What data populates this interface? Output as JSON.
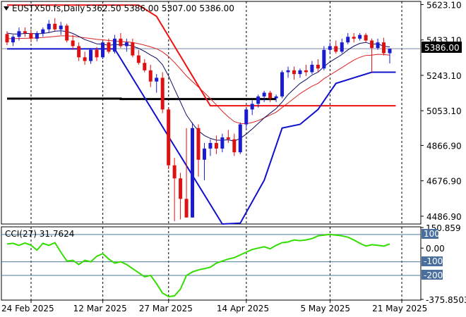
{
  "chart_data": [
    {
      "type": "candlestick",
      "header": {
        "symbol_label": "EUSTX50.fs,Daily",
        "ohlc_text": "5362.50 5386.00 5307.00 5386.00"
      },
      "last_price_label": "5386.00",
      "y_ticks": [
        "5623.10",
        "5433.10",
        "5243.10",
        "5053.10",
        "4866.90",
        "4676.90",
        "4486.90"
      ],
      "x_labels": [
        "24 Feb 2025",
        "12 Mar 2025",
        "27 Mar 2025",
        "14 Apr 2025",
        "5 May 2025",
        "21 May 2025"
      ],
      "ylim": [
        4445,
        5640
      ],
      "bar_count": 65,
      "x_label_bar_index": [
        0,
        12,
        23,
        36,
        50,
        62
      ],
      "candles": [
        {
          "o": 5465,
          "h": 5480,
          "l": 5405,
          "c": 5420
        },
        {
          "o": 5420,
          "h": 5460,
          "l": 5400,
          "c": 5450
        },
        {
          "o": 5450,
          "h": 5500,
          "l": 5430,
          "c": 5480
        },
        {
          "o": 5480,
          "h": 5500,
          "l": 5450,
          "c": 5470
        },
        {
          "o": 5470,
          "h": 5490,
          "l": 5420,
          "c": 5440
        },
        {
          "o": 5440,
          "h": 5480,
          "l": 5425,
          "c": 5470
        },
        {
          "o": 5470,
          "h": 5500,
          "l": 5450,
          "c": 5490
        },
        {
          "o": 5490,
          "h": 5540,
          "l": 5470,
          "c": 5520
        },
        {
          "o": 5520,
          "h": 5550,
          "l": 5480,
          "c": 5490
        },
        {
          "o": 5490,
          "h": 5530,
          "l": 5460,
          "c": 5510
        },
        {
          "o": 5510,
          "h": 5520,
          "l": 5420,
          "c": 5430
        },
        {
          "o": 5430,
          "h": 5460,
          "l": 5380,
          "c": 5400
        },
        {
          "o": 5400,
          "h": 5420,
          "l": 5320,
          "c": 5340
        },
        {
          "o": 5340,
          "h": 5370,
          "l": 5300,
          "c": 5320
        },
        {
          "o": 5320,
          "h": 5390,
          "l": 5305,
          "c": 5380
        },
        {
          "o": 5380,
          "h": 5395,
          "l": 5320,
          "c": 5340
        },
        {
          "o": 5340,
          "h": 5430,
          "l": 5330,
          "c": 5420
        },
        {
          "o": 5420,
          "h": 5440,
          "l": 5360,
          "c": 5370
        },
        {
          "o": 5370,
          "h": 5460,
          "l": 5360,
          "c": 5440
        },
        {
          "o": 5440,
          "h": 5470,
          "l": 5390,
          "c": 5400
        },
        {
          "o": 5400,
          "h": 5440,
          "l": 5370,
          "c": 5420
        },
        {
          "o": 5420,
          "h": 5440,
          "l": 5340,
          "c": 5350
        },
        {
          "o": 5350,
          "h": 5380,
          "l": 5300,
          "c": 5310
        },
        {
          "o": 5310,
          "h": 5330,
          "l": 5260,
          "c": 5270
        },
        {
          "o": 5270,
          "h": 5300,
          "l": 5180,
          "c": 5210
        },
        {
          "o": 5210,
          "h": 5250,
          "l": 5150,
          "c": 5230
        },
        {
          "o": 5230,
          "h": 5260,
          "l": 5040,
          "c": 5060
        },
        {
          "o": 5060,
          "h": 5070,
          "l": 4740,
          "c": 4760
        },
        {
          "o": 4760,
          "h": 4800,
          "l": 4460,
          "c": 4690
        },
        {
          "o": 4690,
          "h": 4720,
          "l": 4470,
          "c": 4580
        },
        {
          "o": 4580,
          "h": 4960,
          "l": 4480,
          "c": 4480
        },
        {
          "o": 4480,
          "h": 4990,
          "l": 4480,
          "c": 4960
        },
        {
          "o": 4960,
          "h": 4980,
          "l": 4700,
          "c": 4790
        },
        {
          "o": 4790,
          "h": 4880,
          "l": 4680,
          "c": 4850
        },
        {
          "o": 4850,
          "h": 4900,
          "l": 4810,
          "c": 4880
        },
        {
          "o": 4880,
          "h": 4920,
          "l": 4820,
          "c": 4850
        },
        {
          "o": 4850,
          "h": 4930,
          "l": 4830,
          "c": 4910
        },
        {
          "o": 4910,
          "h": 4950,
          "l": 4880,
          "c": 4900
        },
        {
          "o": 4900,
          "h": 4930,
          "l": 4810,
          "c": 4830
        },
        {
          "o": 4830,
          "h": 4990,
          "l": 4820,
          "c": 4980
        },
        {
          "o": 4980,
          "h": 5070,
          "l": 4960,
          "c": 5060
        },
        {
          "o": 5060,
          "h": 5110,
          "l": 5030,
          "c": 5090
        },
        {
          "o": 5090,
          "h": 5140,
          "l": 5070,
          "c": 5130
        },
        {
          "o": 5130,
          "h": 5160,
          "l": 5100,
          "c": 5150
        },
        {
          "o": 5150,
          "h": 5160,
          "l": 5100,
          "c": 5120
        },
        {
          "o": 5120,
          "h": 5140,
          "l": 5100,
          "c": 5130
        },
        {
          "o": 5130,
          "h": 5270,
          "l": 5120,
          "c": 5260
        },
        {
          "o": 5260,
          "h": 5290,
          "l": 5230,
          "c": 5270
        },
        {
          "o": 5270,
          "h": 5290,
          "l": 5220,
          "c": 5250
        },
        {
          "o": 5250,
          "h": 5280,
          "l": 5230,
          "c": 5270
        },
        {
          "o": 5270,
          "h": 5300,
          "l": 5240,
          "c": 5260
        },
        {
          "o": 5260,
          "h": 5320,
          "l": 5250,
          "c": 5300
        },
        {
          "o": 5300,
          "h": 5330,
          "l": 5260,
          "c": 5280
        },
        {
          "o": 5280,
          "h": 5400,
          "l": 5270,
          "c": 5380
        },
        {
          "o": 5380,
          "h": 5420,
          "l": 5360,
          "c": 5400
        },
        {
          "o": 5400,
          "h": 5430,
          "l": 5360,
          "c": 5370
        },
        {
          "o": 5370,
          "h": 5440,
          "l": 5360,
          "c": 5420
        },
        {
          "o": 5420,
          "h": 5470,
          "l": 5410,
          "c": 5450
        },
        {
          "o": 5450,
          "h": 5470,
          "l": 5420,
          "c": 5440
        },
        {
          "o": 5440,
          "h": 5470,
          "l": 5430,
          "c": 5460
        },
        {
          "o": 5460,
          "h": 5470,
          "l": 5420,
          "c": 5430
        },
        {
          "o": 5430,
          "h": 5440,
          "l": 5260,
          "c": 5390
        },
        {
          "o": 5390,
          "h": 5440,
          "l": 5380,
          "c": 5420
        },
        {
          "o": 5420,
          "h": 5445,
          "l": 5350,
          "c": 5362
        },
        {
          "o": 5362,
          "h": 5386,
          "l": 5307,
          "c": 5386
        }
      ],
      "fast_ma": [
        5470,
        5465,
        5465,
        5468,
        5468,
        5466,
        5468,
        5473,
        5480,
        5482,
        5478,
        5468,
        5452,
        5435,
        5424,
        5412,
        5410,
        5404,
        5408,
        5407,
        5408,
        5400,
        5388,
        5372,
        5352,
        5335,
        5300,
        5240,
        5170,
        5100,
        5030,
        4985,
        4945,
        4920,
        4905,
        4895,
        4895,
        4897,
        4890,
        4905,
        4928,
        4955,
        4985,
        5015,
        5040,
        5065,
        5100,
        5140,
        5170,
        5200,
        5220,
        5245,
        5260,
        5290,
        5315,
        5335,
        5355,
        5380,
        5400,
        5415,
        5420,
        5410,
        5412,
        5400,
        5395
      ],
      "slow_ma": [
        5440,
        5440,
        5441,
        5442,
        5443,
        5444,
        5446,
        5449,
        5452,
        5455,
        5455,
        5453,
        5449,
        5444,
        5441,
        5436,
        5434,
        5430,
        5428,
        5425,
        5423,
        5419,
        5413,
        5405,
        5396,
        5386,
        5369,
        5344,
        5312,
        5277,
        5240,
        5210,
        5180,
        5150,
        5118,
        5085,
        5050,
        5020,
        4995,
        4985,
        4983,
        4990,
        5000,
        5015,
        5030,
        5045,
        5070,
        5095,
        5120,
        5145,
        5165,
        5185,
        5200,
        5225,
        5245,
        5265,
        5285,
        5305,
        5325,
        5340,
        5350,
        5352,
        5356,
        5355,
        5352
      ],
      "channel_upper": [
        {
          "x": 0,
          "y": 5620
        },
        {
          "x": 22,
          "y": 5620
        },
        {
          "x": 25,
          "y": 5560
        },
        {
          "x": 28,
          "y": 5400
        },
        {
          "x": 31,
          "y": 5240
        },
        {
          "x": 34,
          "y": 5080
        },
        {
          "x": 65,
          "y": 5080
        }
      ],
      "channel_lower": [
        {
          "x": 0,
          "y": 5385
        },
        {
          "x": 18,
          "y": 5385
        },
        {
          "x": 36,
          "y": 4445
        },
        {
          "x": 39,
          "y": 4450
        },
        {
          "x": 43,
          "y": 4680
        },
        {
          "x": 46,
          "y": 4960
        },
        {
          "x": 49,
          "y": 4980
        },
        {
          "x": 52,
          "y": 5060
        },
        {
          "x": 55,
          "y": 5200
        },
        {
          "x": 58,
          "y": 5230
        },
        {
          "x": 61,
          "y": 5260
        },
        {
          "x": 65,
          "y": 5260
        }
      ],
      "support_line": [
        {
          "x": 0,
          "y": 5118
        },
        {
          "x": 19,
          "y": 5118
        },
        {
          "x": 19,
          "y": 5116
        },
        {
          "x": 45,
          "y": 5116
        }
      ],
      "colors": {
        "up": "#1b1bd0",
        "down": "#dd1111",
        "fast_ma": "#0c0c66",
        "slow_ma": "#dd2222",
        "channel": "#1010cc",
        "support": "#000000",
        "last_price_tag_bg": "#000000",
        "last_price_tag_fg": "#ffffff",
        "grid": "#000000"
      }
    },
    {
      "type": "line",
      "indicator_label": "CCI(27) 31.7624",
      "y_ticks": [
        "150.859",
        "0.00",
        "-375.8503"
      ],
      "level_tags": [
        "100",
        "-100",
        "-200"
      ],
      "levels": [
        100,
        -100,
        -200
      ],
      "ylim": [
        -375.8503,
        150.859
      ],
      "series": [
        {
          "values": [
            30,
            35,
            20,
            38,
            22,
            -15,
            35,
            20,
            40,
            -30,
            -95,
            -90,
            -120,
            -90,
            -100,
            -60,
            -40,
            -80,
            -110,
            -100,
            -120,
            -150,
            -180,
            -210,
            -200,
            -260,
            -330,
            -355,
            -350,
            -300,
            -200,
            -175,
            -160,
            -150,
            -140,
            -110,
            -95,
            -80,
            -70,
            -50,
            -30,
            -10,
            0,
            10,
            -5,
            20,
            40,
            45,
            60,
            55,
            60,
            70,
            90,
            95,
            100,
            95,
            90,
            80,
            60,
            35,
            15,
            25,
            20,
            15,
            30
          ]
        }
      ],
      "colors": {
        "cci": "#33dd00",
        "level_line": "#4a7d9a",
        "level_tag_bg": "#4a6f9e",
        "level_tag_fg": "#ffffff"
      }
    }
  ]
}
